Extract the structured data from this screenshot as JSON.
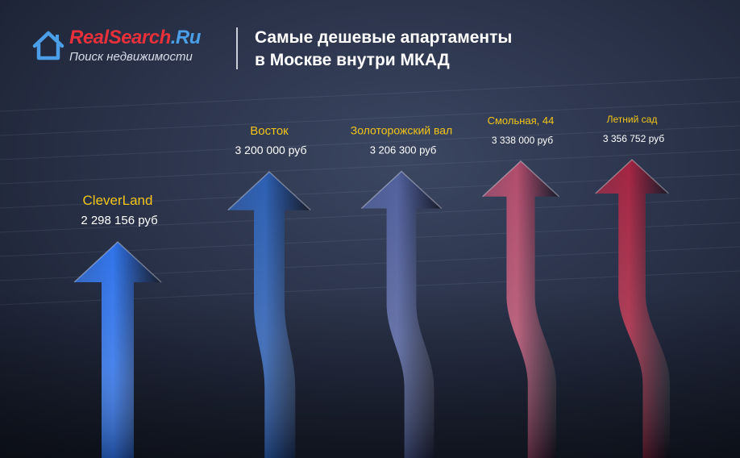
{
  "header": {
    "brand_main": "RealSearch",
    "brand_domain": ".Ru",
    "tagline": "Поиск недвижимости",
    "title_line1": "Самые дешевые апартаменты",
    "title_line2": "в Москве внутри МКАД",
    "logo_icon": "house-icon"
  },
  "chart_data": {
    "type": "bar",
    "title": "Самые дешевые апартаменты в Москве внутри МКАД",
    "categories": [
      "CleverLand",
      "Восток",
      "Золоторожский вал",
      "Смольная, 44",
      "Летний сад"
    ],
    "values": [
      2298156,
      3200000,
      3206300,
      3338000,
      3356752
    ],
    "value_labels": [
      "2 298 156 руб",
      "3 200 000 руб",
      "3 206 300 руб",
      "3 338 000 руб",
      "3 356 752 руб"
    ],
    "unit": "руб",
    "ylim": [
      0,
      3500000
    ],
    "grid": true,
    "label_color": "#f2c518",
    "value_color": "#ffffff",
    "colors": [
      "#2f73ea",
      "#2c5fb3",
      "#52619e",
      "#b24d6d",
      "#a42542"
    ]
  }
}
